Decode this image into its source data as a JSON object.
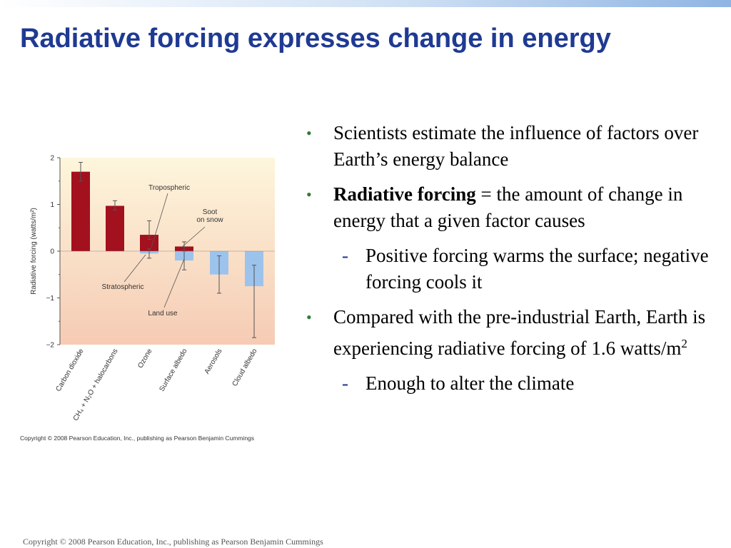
{
  "slide": {
    "title": "Radiative forcing expresses change in energy",
    "footer": "Copyright © 2008 Pearson Education, Inc., publishing as Pearson Benjamin Cummings"
  },
  "bullets": [
    {
      "text": "Scientists estimate the influence of factors over Earth’s energy balance"
    },
    {
      "bold": "Radiative forcing",
      "text": " = the amount of change in energy that a given factor causes"
    },
    {
      "text": "Positive forcing warms the surface; negative forcing cools it"
    },
    {
      "text": "Compared with the pre-industrial Earth, Earth is experiencing radiative forcing of 1.6 watts/m",
      "sup": "2"
    },
    {
      "text": "Enough to alter the climate"
    }
  ],
  "chart_data": {
    "type": "bar",
    "ylabel": "Radiative forcing (watts/m²)",
    "ylim": [
      -2,
      2
    ],
    "yticks": [
      "2",
      "1",
      "0",
      "−1",
      "−2"
    ],
    "categories": [
      "Carbon dioxide",
      "CH₄ + N₂O + halocarbons",
      "Ozone",
      "Surface albedo",
      "Aerosols",
      "Cloud albedo"
    ],
    "bars": [
      {
        "category": "Carbon dioxide",
        "value": 1.7,
        "err_low": 1.5,
        "err_high": 1.9,
        "sign": "positive"
      },
      {
        "category": "CH₄ + N₂O + halocarbons",
        "value": 0.97,
        "err_low": 0.88,
        "err_high": 1.08,
        "sign": "positive"
      },
      {
        "category": "Ozone",
        "component": "Tropospheric",
        "value": 0.35,
        "err_low": 0.25,
        "err_high": 0.65,
        "sign": "positive"
      },
      {
        "category": "Ozone",
        "component": "Stratospheric",
        "value": -0.05,
        "err_low": -0.15,
        "err_high": 0.05,
        "sign": "negative"
      },
      {
        "category": "Surface albedo",
        "component": "Soot on snow",
        "value": 0.1,
        "err_low": 0.0,
        "err_high": 0.2,
        "sign": "positive"
      },
      {
        "category": "Surface albedo",
        "component": "Land use",
        "value": -0.2,
        "err_low": -0.4,
        "err_high": 0.0,
        "sign": "negative"
      },
      {
        "category": "Aerosols",
        "value": -0.5,
        "err_low": -0.9,
        "err_high": -0.1,
        "sign": "negative"
      },
      {
        "category": "Cloud albedo",
        "value": -0.75,
        "err_low": -1.85,
        "err_high": -0.3,
        "sign": "negative"
      }
    ],
    "annotations": [
      "Tropospheric",
      "Soot on snow",
      "Stratospheric",
      "Land use"
    ],
    "copyright": "Copyright © 2008 Pearson Education, Inc., publishing as Pearson Benjamin Cummings",
    "colors": {
      "positive": "#a3101e",
      "negative": "#9cc3ec",
      "background_top": "#fdf6dc",
      "background_bottom": "#f6cbb4"
    }
  }
}
